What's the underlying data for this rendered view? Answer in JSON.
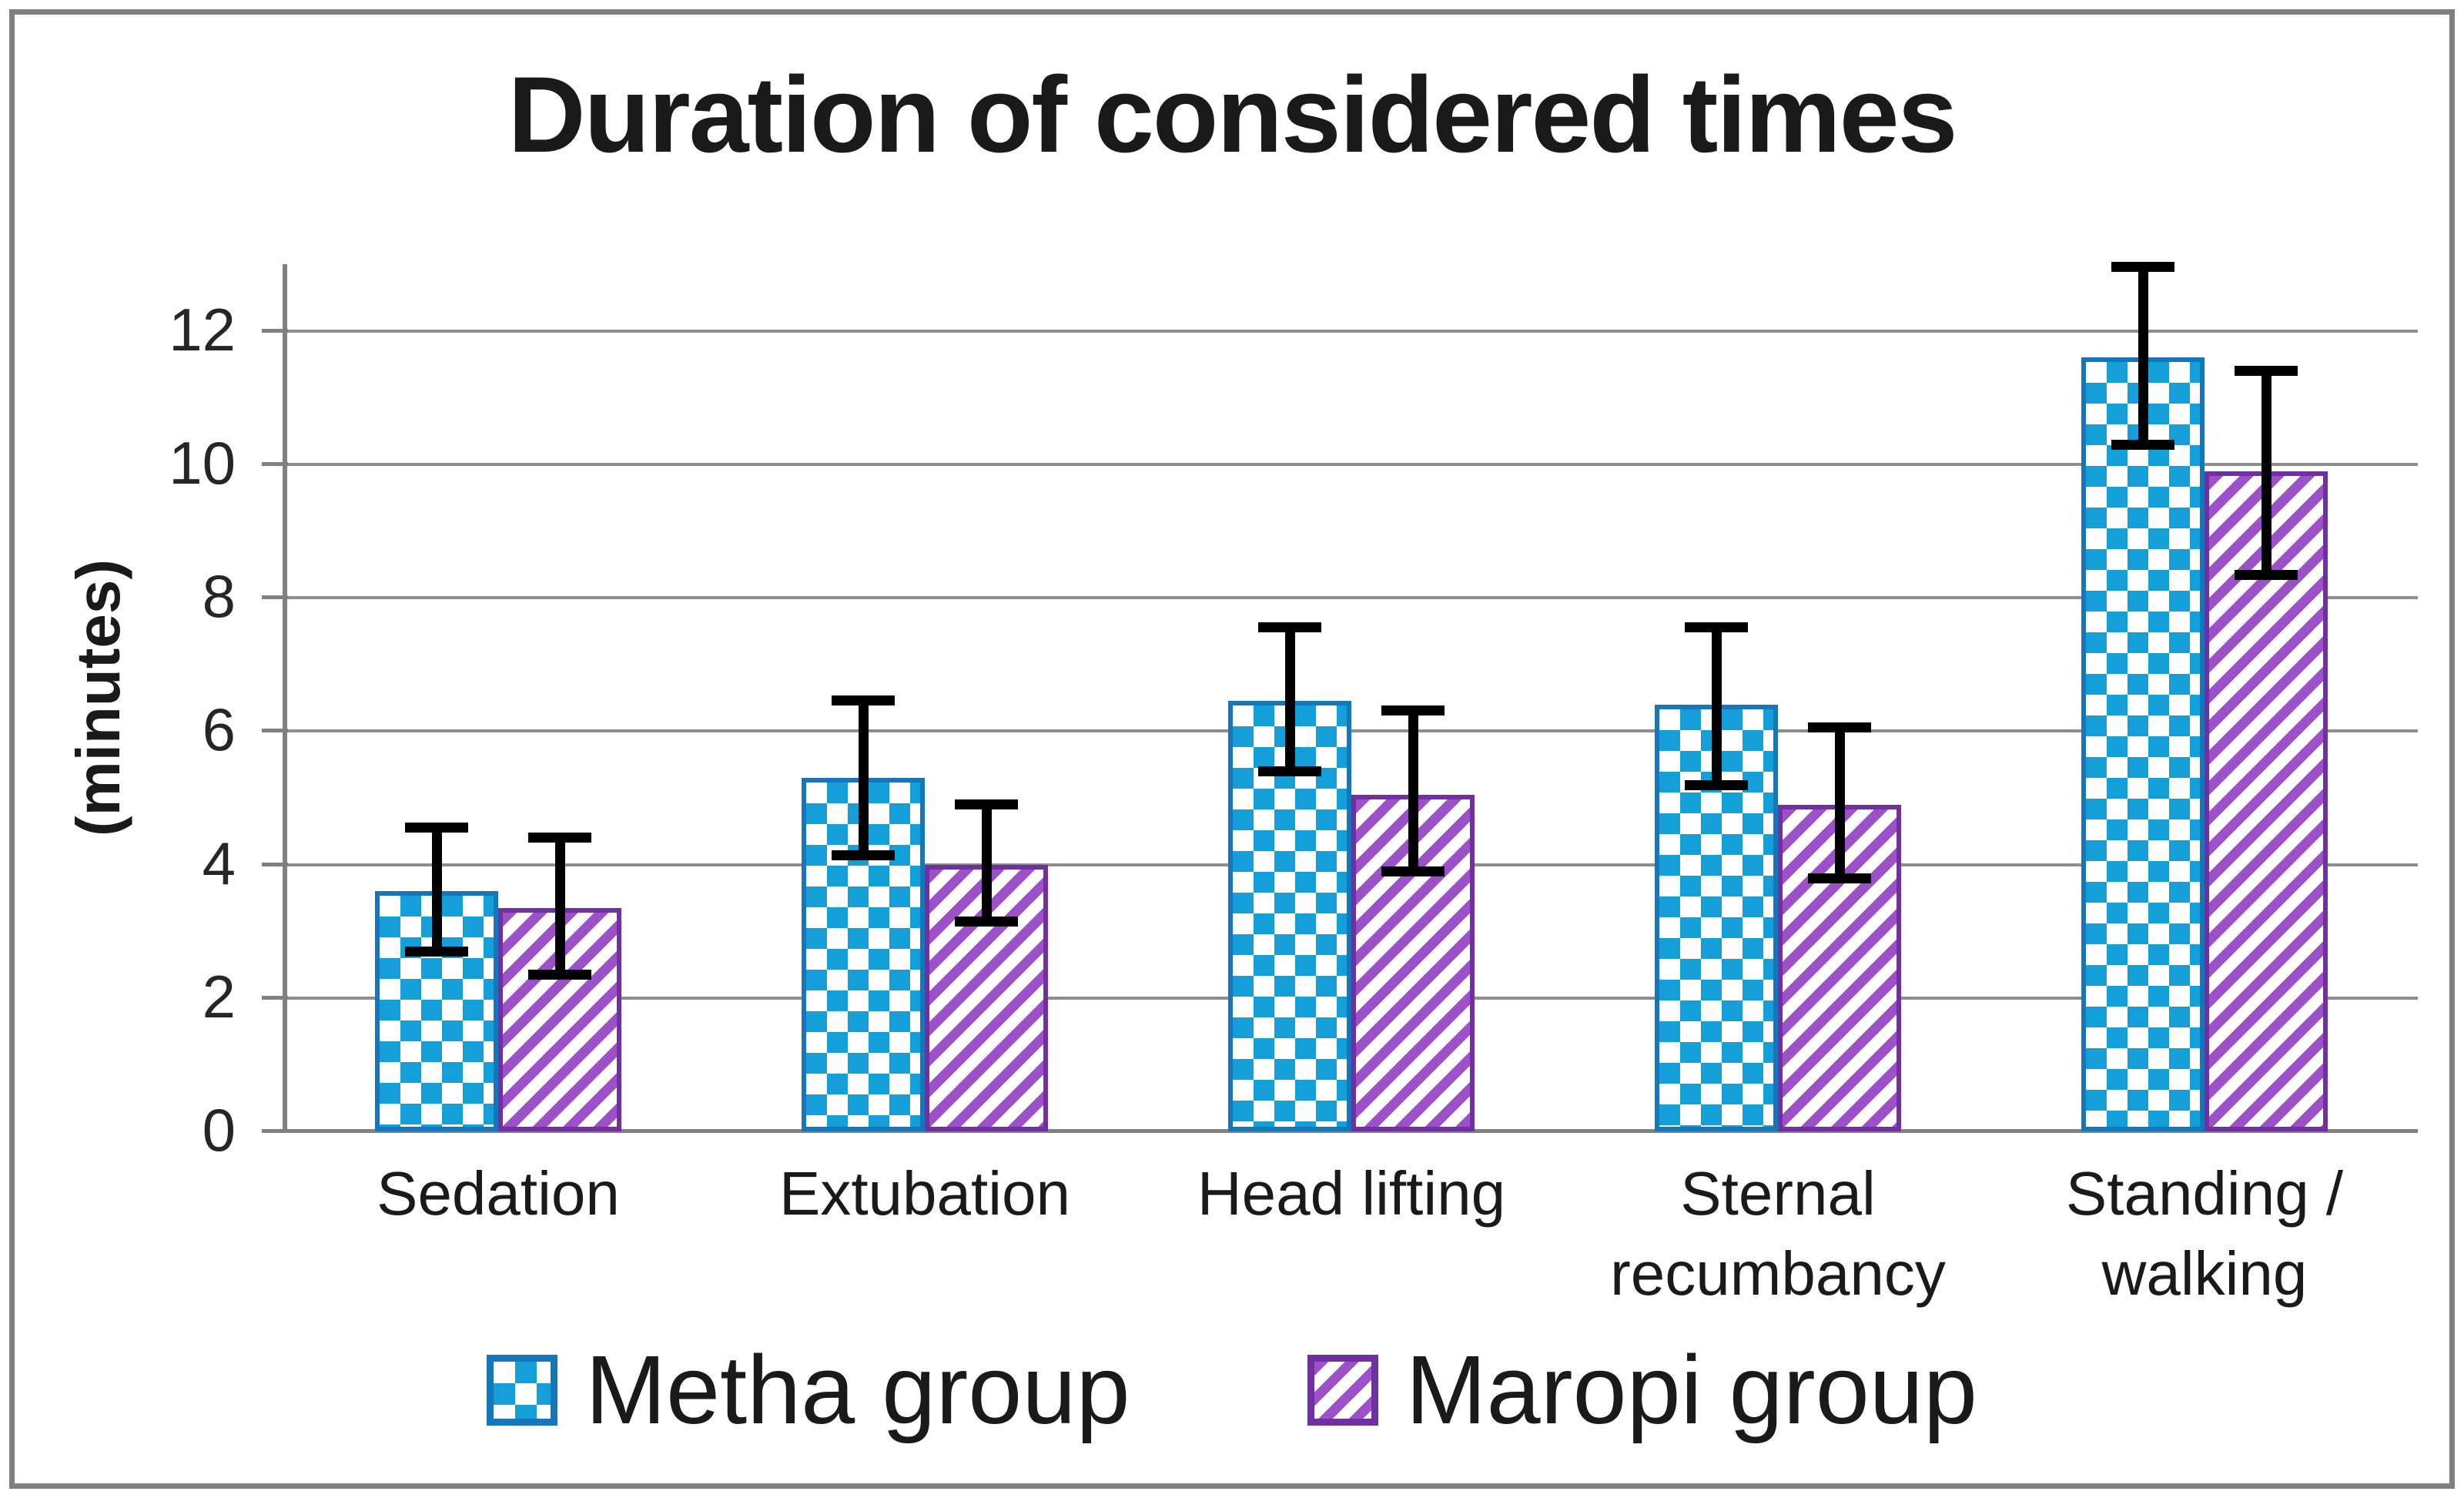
{
  "figure": {
    "background": "#ffffff",
    "border_color": "#7f7f7f"
  },
  "chart_data": {
    "type": "bar",
    "title": "Duration of considered times",
    "ylabel": "(minutes)",
    "ylim": [
      0,
      13
    ],
    "yticks": [
      0,
      2,
      4,
      6,
      8,
      10,
      12
    ],
    "grid": "horizontal",
    "legend_position": "bottom",
    "categories": [
      "Sedation",
      "Extubation",
      "Head lifting",
      "Sternal recumbancy",
      "Standing / walking"
    ],
    "series": [
      {
        "name": "Metha group",
        "pattern": "checkerboard",
        "fill_color": "#159fd8",
        "border_color": "#1576bb",
        "values": [
          3.6,
          5.3,
          6.45,
          6.4,
          11.6
        ],
        "error_low": [
          2.7,
          4.15,
          5.4,
          5.2,
          10.3
        ],
        "error_high": [
          4.55,
          6.45,
          7.55,
          7.55,
          12.95
        ]
      },
      {
        "name": "Maropi group",
        "pattern": "diagonal-stripes",
        "fill_color": "#9c51c8",
        "border_color": "#7030a0",
        "values": [
          3.35,
          4.0,
          5.05,
          4.9,
          9.9
        ],
        "error_low": [
          2.35,
          3.15,
          3.9,
          3.8,
          8.35
        ],
        "error_high": [
          4.4,
          4.9,
          6.3,
          6.05,
          11.4
        ]
      }
    ]
  }
}
